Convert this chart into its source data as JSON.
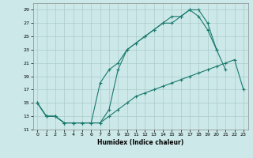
{
  "title": "",
  "xlabel": "Humidex (Indice chaleur)",
  "background_color": "#cce8e8",
  "grid_color": "#aacccc",
  "line_color": "#1a7a6e",
  "xlim": [
    -0.5,
    23.5
  ],
  "ylim": [
    11,
    30
  ],
  "yticks": [
    11,
    13,
    15,
    17,
    19,
    21,
    23,
    25,
    27,
    29
  ],
  "xticks": [
    0,
    1,
    2,
    3,
    4,
    5,
    6,
    7,
    8,
    9,
    10,
    11,
    12,
    13,
    14,
    15,
    16,
    17,
    18,
    19,
    20,
    21,
    22,
    23
  ],
  "line1_x": [
    0,
    1,
    2,
    3,
    4,
    5,
    6,
    7,
    8,
    9,
    10,
    11,
    12,
    13,
    14,
    15,
    16,
    17,
    18,
    19,
    20,
    21,
    22,
    23
  ],
  "line1_y": [
    15,
    13,
    13,
    12,
    12,
    12,
    12,
    12,
    13,
    14,
    15,
    16,
    16.5,
    17,
    17.5,
    18,
    18.5,
    19,
    19.5,
    20,
    20.5,
    21,
    21.5,
    17
  ],
  "line2_x": [
    0,
    1,
    2,
    3,
    4,
    5,
    6,
    7,
    8,
    9,
    10,
    11,
    12,
    13,
    14,
    15,
    16,
    17,
    18,
    19,
    20,
    21
  ],
  "line2_y": [
    15,
    13,
    13,
    12,
    12,
    12,
    12,
    18,
    20,
    21,
    23,
    24,
    25,
    26,
    27,
    27,
    28,
    29,
    29,
    27,
    23,
    20
  ],
  "line3_x": [
    0,
    1,
    2,
    3,
    4,
    5,
    6,
    7,
    8,
    9,
    10,
    11,
    12,
    13,
    14,
    15,
    16,
    17,
    18,
    19,
    20
  ],
  "line3_y": [
    15,
    13,
    13,
    12,
    12,
    12,
    12,
    12,
    14,
    20,
    23,
    24,
    25,
    26,
    27,
    28,
    28,
    29,
    28,
    26,
    23
  ]
}
